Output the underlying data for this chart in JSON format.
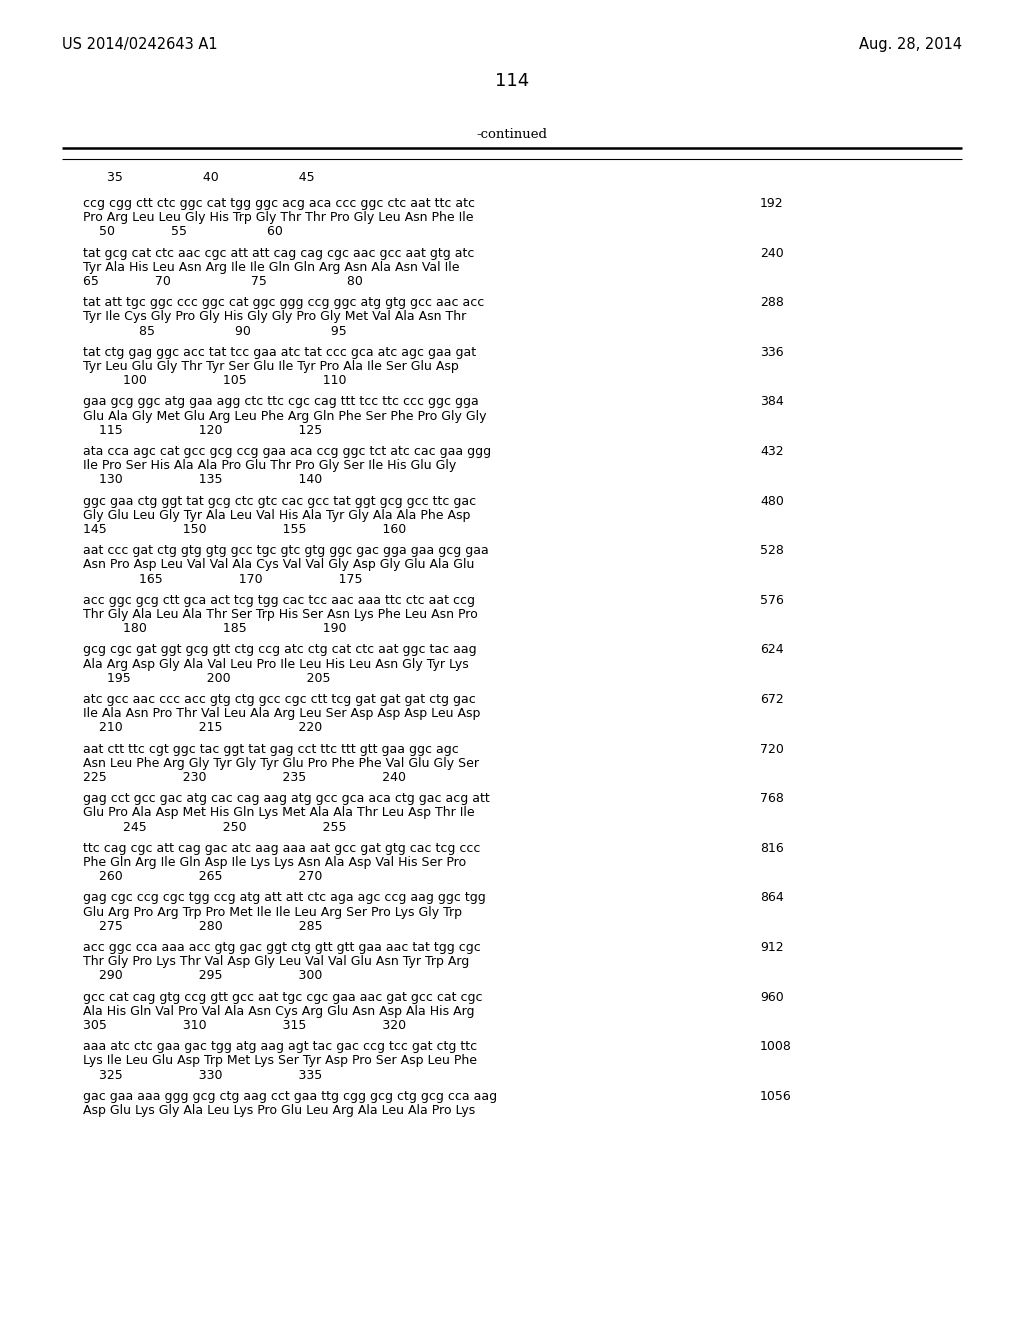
{
  "patent_left": "US 2014/0242643 A1",
  "patent_right": "Aug. 28, 2014",
  "page_number": "114",
  "continued": "-continued",
  "background_color": "#ffffff",
  "text_color": "#000000",
  "header_row": "      35                    40                    45",
  "groups": [
    {
      "dna": "ccg cgg ctt ctc ggc cat tgg ggc acg aca ccc ggc ctc aat ttc atc",
      "aa": "Pro Arg Leu Leu Gly His Trp Gly Thr Thr Pro Gly Leu Asn Phe Ile",
      "num_row": "    50              55                    60",
      "num": "192"
    },
    {
      "dna": "tat gcg cat ctc aac cgc att att cag cag cgc aac gcc aat gtg atc",
      "aa": "Tyr Ala His Leu Asn Arg Ile Ile Gln Gln Arg Asn Ala Asn Val Ile",
      "num_row": "65              70                    75                    80",
      "num": "240"
    },
    {
      "dna": "tat att tgc ggc ccc ggc cat ggc ggg ccg ggc atg gtg gcc aac acc",
      "aa": "Tyr Ile Cys Gly Pro Gly His Gly Gly Pro Gly Met Val Ala Asn Thr",
      "num_row": "              85                    90                    95",
      "num": "288"
    },
    {
      "dna": "tat ctg gag ggc acc tat tcc gaa atc tat ccc gca atc agc gaa gat",
      "aa": "Tyr Leu Glu Gly Thr Tyr Ser Glu Ile Tyr Pro Ala Ile Ser Glu Asp",
      "num_row": "          100                   105                   110",
      "num": "336"
    },
    {
      "dna": "gaa gcg ggc atg gaa agg ctc ttc cgc cag ttt tcc ttc ccc ggc gga",
      "aa": "Glu Ala Gly Met Glu Arg Leu Phe Arg Gln Phe Ser Phe Pro Gly Gly",
      "num_row": "    115                   120                   125",
      "num": "384"
    },
    {
      "dna": "ata cca agc cat gcc gcg ccg gaa aca ccg ggc tct atc cac gaa ggg",
      "aa": "Ile Pro Ser His Ala Ala Pro Glu Thr Pro Gly Ser Ile His Glu Gly",
      "num_row": "    130                   135                   140",
      "num": "432"
    },
    {
      "dna": "ggc gaa ctg ggt tat gcg ctc gtc cac gcc tat ggt gcg gcc ttc gac",
      "aa": "Gly Glu Leu Gly Tyr Ala Leu Val His Ala Tyr Gly Ala Ala Phe Asp",
      "num_row": "145                   150                   155                   160",
      "num": "480"
    },
    {
      "dna": "aat ccc gat ctg gtg gtg gcc tgc gtc gtg ggc gac gga gaa gcg gaa",
      "aa": "Asn Pro Asp Leu Val Val Ala Cys Val Val Gly Asp Gly Glu Ala Glu",
      "num_row": "              165                   170                   175",
      "num": "528"
    },
    {
      "dna": "acc ggc gcg ctt gca act tcg tgg cac tcc aac aaa ttc ctc aat ccg",
      "aa": "Thr Gly Ala Leu Ala Thr Ser Trp His Ser Asn Lys Phe Leu Asn Pro",
      "num_row": "          180                   185                   190",
      "num": "576"
    },
    {
      "dna": "gcg cgc gat ggt gcg gtt ctg ccg atc ctg cat ctc aat ggc tac aag",
      "aa": "Ala Arg Asp Gly Ala Val Leu Pro Ile Leu His Leu Asn Gly Tyr Lys",
      "num_row": "      195                   200                   205",
      "num": "624"
    },
    {
      "dna": "atc gcc aac ccc acc gtg ctg gcc cgc ctt tcg gat gat gat ctg gac",
      "aa": "Ile Ala Asn Pro Thr Val Leu Ala Arg Leu Ser Asp Asp Asp Leu Asp",
      "num_row": "    210                   215                   220",
      "num": "672"
    },
    {
      "dna": "aat ctt ttc cgt ggc tac ggt tat gag cct ttc ttt gtt gaa ggc agc",
      "aa": "Asn Leu Phe Arg Gly Tyr Gly Tyr Glu Pro Phe Phe Val Glu Gly Ser",
      "num_row": "225                   230                   235                   240",
      "num": "720"
    },
    {
      "dna": "gag cct gcc gac atg cac cag aag atg gcc gca aca ctg gac acg att",
      "aa": "Glu Pro Ala Asp Met His Gln Lys Met Ala Ala Thr Leu Asp Thr Ile",
      "num_row": "          245                   250                   255",
      "num": "768"
    },
    {
      "dna": "ttc cag cgc att cag gac atc aag aaa aat gcc gat gtg cac tcg ccc",
      "aa": "Phe Gln Arg Ile Gln Asp Ile Lys Lys Asn Ala Asp Val His Ser Pro",
      "num_row": "    260                   265                   270",
      "num": "816"
    },
    {
      "dna": "gag cgc ccg cgc tgg ccg atg att att ctc aga agc ccg aag ggc tgg",
      "aa": "Glu Arg Pro Arg Trp Pro Met Ile Ile Leu Arg Ser Pro Lys Gly Trp",
      "num_row": "    275                   280                   285",
      "num": "864"
    },
    {
      "dna": "acc ggc cca aaa acc gtg gac ggt ctg gtt gtt gaa aac tat tgg cgc",
      "aa": "Thr Gly Pro Lys Thr Val Asp Gly Leu Val Val Glu Asn Tyr Trp Arg",
      "num_row": "    290                   295                   300",
      "num": "912"
    },
    {
      "dna": "gcc cat cag gtg ccg gtt gcc aat tgc cgc gaa aac gat gcc cat cgc",
      "aa": "Ala His Gln Val Pro Val Ala Asn Cys Arg Glu Asn Asp Ala His Arg",
      "num_row": "305                   310                   315                   320",
      "num": "960"
    },
    {
      "dna": "aaa atc ctc gaa gac tgg atg aag agt tac gac ccg tcc gat ctg ttc",
      "aa": "Lys Ile Leu Glu Asp Trp Met Lys Ser Tyr Asp Pro Ser Asp Leu Phe",
      "num_row": "    325                   330                   335",
      "num": "1008"
    },
    {
      "dna": "gac gaa aaa ggg gcg ctg aag cct gaa ttg cgg gcg ctg gcg cca aag",
      "aa": "Asp Glu Lys Gly Ala Leu Lys Pro Glu Leu Arg Ala Leu Ala Pro Lys",
      "num_row": "",
      "num": "1056"
    }
  ]
}
